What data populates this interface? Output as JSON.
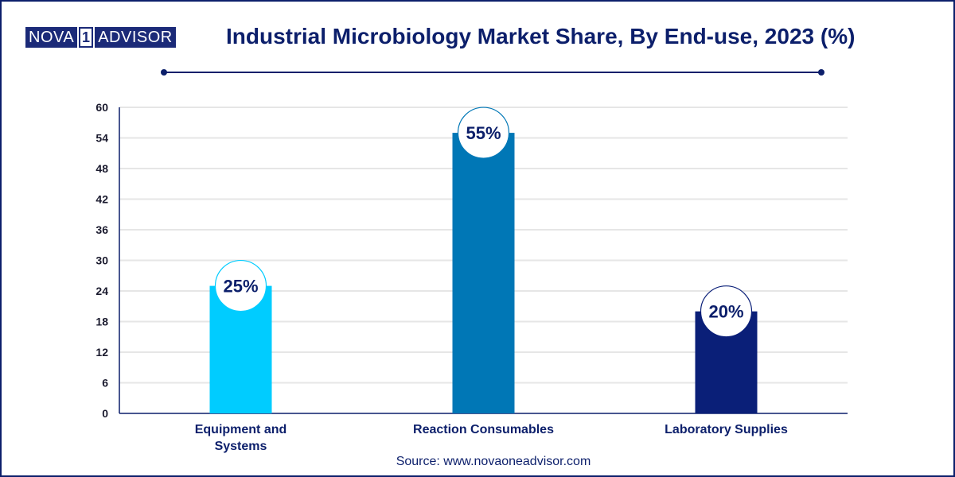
{
  "logo": {
    "left": "NOVA",
    "mid": "1",
    "right": "ADVISOR"
  },
  "title": "Industrial Microbiology Market Share, By End-use, 2023 (%)",
  "source": "Source: www.novaoneadvisor.com",
  "chart_data": {
    "type": "bar",
    "title": "Industrial Microbiology Market Share, By End-use, 2023 (%)",
    "xlabel": "",
    "ylabel": "",
    "ylim": [
      0,
      60
    ],
    "yticks": [
      0,
      6,
      12,
      18,
      24,
      30,
      36,
      42,
      48,
      54,
      60
    ],
    "grid": true,
    "categories": [
      {
        "lines": [
          "Equipment and",
          "Systems"
        ]
      },
      {
        "lines": [
          "Reaction Consumables"
        ]
      },
      {
        "lines": [
          "Laboratory Supplies"
        ]
      }
    ],
    "values": [
      25,
      55,
      20
    ],
    "data_labels": [
      "25%",
      "55%",
      "20%"
    ],
    "colors": [
      "#00ccff",
      "#0077b6",
      "#0a1f78"
    ],
    "axis_color": "#0c1f6b",
    "grid_color": "#e6e6e6"
  }
}
